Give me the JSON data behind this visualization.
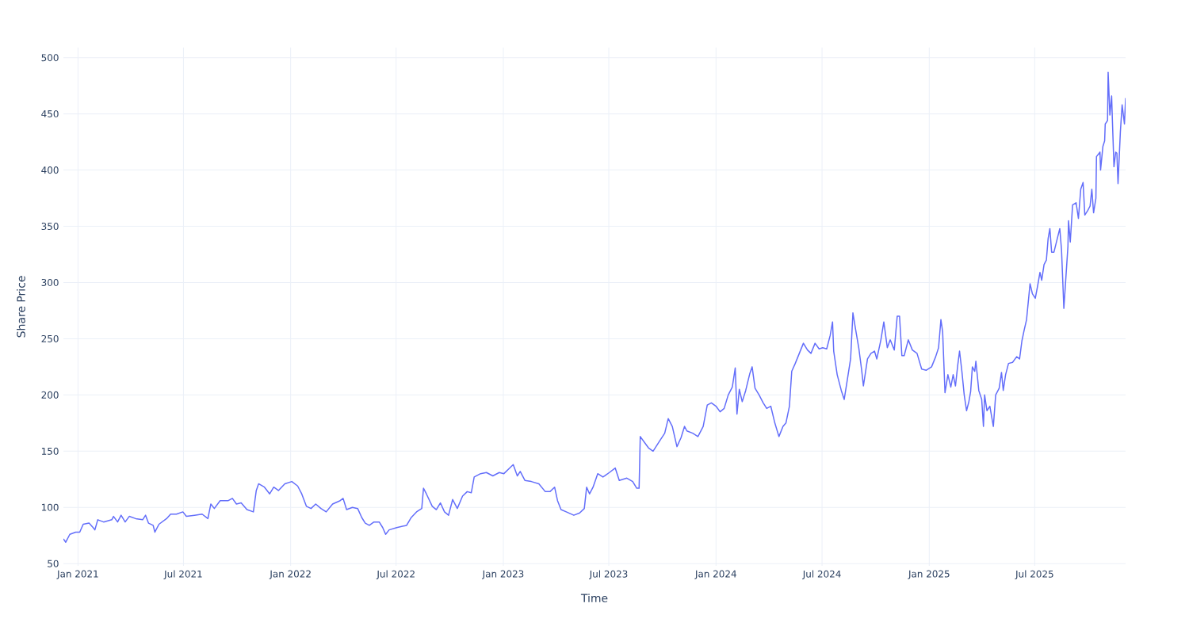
{
  "chart_data": {
    "type": "line",
    "xlabel": "Time",
    "ylabel": "Share Price",
    "x": [
      "2020-12-07",
      "2020-12-11",
      "2020-12-18",
      "2020-12-28",
      "2021-01-04",
      "2021-01-10",
      "2021-01-20",
      "2021-01-27",
      "2021-01-30",
      "2021-02-04",
      "2021-02-14",
      "2021-02-28",
      "2021-03-03",
      "2021-03-10",
      "2021-03-16",
      "2021-03-23",
      "2021-03-30",
      "2021-04-10",
      "2021-04-22",
      "2021-04-27",
      "2021-05-02",
      "2021-05-10",
      "2021-05-13",
      "2021-05-20",
      "2021-06-02",
      "2021-06-09",
      "2021-06-19",
      "2021-06-30",
      "2021-07-06",
      "2021-07-20",
      "2021-08-02",
      "2021-08-12",
      "2021-08-17",
      "2021-08-23",
      "2021-09-02",
      "2021-09-16",
      "2021-09-23",
      "2021-09-30",
      "2021-10-08",
      "2021-10-18",
      "2021-10-29",
      "2021-11-03",
      "2021-11-07",
      "2021-11-17",
      "2021-11-26",
      "2021-12-03",
      "2021-12-11",
      "2021-12-22",
      "2022-01-03",
      "2022-01-13",
      "2022-01-20",
      "2022-01-28",
      "2022-02-05",
      "2022-02-13",
      "2022-02-22",
      "2022-03-03",
      "2022-03-14",
      "2022-03-27",
      "2022-04-01",
      "2022-04-07",
      "2022-04-17",
      "2022-04-26",
      "2022-05-03",
      "2022-05-09",
      "2022-05-16",
      "2022-05-24",
      "2022-06-02",
      "2022-06-08",
      "2022-06-13",
      "2022-06-19",
      "2022-07-02",
      "2022-07-19",
      "2022-07-27",
      "2022-08-05",
      "2022-08-14",
      "2022-08-17",
      "2022-08-22",
      "2022-09-01",
      "2022-09-08",
      "2022-09-15",
      "2022-09-22",
      "2022-09-29",
      "2022-10-06",
      "2022-10-14",
      "2022-10-23",
      "2022-10-31",
      "2022-11-07",
      "2022-11-12",
      "2022-11-23",
      "2022-12-03",
      "2022-12-14",
      "2022-12-25",
      "2023-01-02",
      "2023-01-12",
      "2023-01-18",
      "2023-01-25",
      "2023-01-30",
      "2023-02-07",
      "2023-02-18",
      "2023-03-03",
      "2023-03-14",
      "2023-03-22",
      "2023-03-30",
      "2023-04-04",
      "2023-04-10",
      "2023-04-19",
      "2023-05-02",
      "2023-05-12",
      "2023-05-20",
      "2023-05-24",
      "2023-05-29",
      "2023-06-04",
      "2023-06-12",
      "2023-06-21",
      "2023-07-02",
      "2023-07-12",
      "2023-07-19",
      "2023-08-01",
      "2023-08-11",
      "2023-08-18",
      "2023-08-22",
      "2023-08-24",
      "2023-08-31",
      "2023-09-07",
      "2023-09-15",
      "2023-09-25",
      "2023-10-05",
      "2023-10-11",
      "2023-10-18",
      "2023-10-26",
      "2023-11-02",
      "2023-11-08",
      "2023-11-12",
      "2023-11-22",
      "2023-12-01",
      "2023-12-10",
      "2023-12-17",
      "2023-12-24",
      "2024-01-01",
      "2024-01-08",
      "2024-01-15",
      "2024-01-22",
      "2024-01-29",
      "2024-02-03",
      "2024-02-06",
      "2024-02-10",
      "2024-02-15",
      "2024-02-21",
      "2024-02-28",
      "2024-03-03",
      "2024-03-08",
      "2024-03-15",
      "2024-03-22",
      "2024-03-28",
      "2024-04-04",
      "2024-04-11",
      "2024-04-18",
      "2024-04-25",
      "2024-04-30",
      "2024-05-06",
      "2024-05-10",
      "2024-05-16",
      "2024-05-23",
      "2024-05-30",
      "2024-06-06",
      "2024-06-12",
      "2024-06-19",
      "2024-06-26",
      "2024-07-02",
      "2024-07-09",
      "2024-07-15",
      "2024-07-19",
      "2024-07-21",
      "2024-07-27",
      "2024-08-03",
      "2024-08-08",
      "2024-08-12",
      "2024-08-19",
      "2024-08-23",
      "2024-08-27",
      "2024-09-02",
      "2024-09-07",
      "2024-09-10",
      "2024-09-17",
      "2024-09-23",
      "2024-09-29",
      "2024-10-03",
      "2024-10-10",
      "2024-10-15",
      "2024-10-21",
      "2024-10-26",
      "2024-11-02",
      "2024-11-07",
      "2024-11-11",
      "2024-11-15",
      "2024-11-19",
      "2024-11-26",
      "2024-12-03",
      "2024-12-11",
      "2024-12-19",
      "2024-12-27",
      "2025-01-05",
      "2025-01-12",
      "2025-01-17",
      "2025-01-21",
      "2025-01-24",
      "2025-01-28",
      "2025-02-02",
      "2025-02-07",
      "2025-02-11",
      "2025-02-15",
      "2025-02-19",
      "2025-02-22",
      "2025-02-26",
      "2025-03-02",
      "2025-03-06",
      "2025-03-10",
      "2025-03-13",
      "2025-03-16",
      "2025-03-20",
      "2025-03-22",
      "2025-03-27",
      "2025-04-01",
      "2025-04-04",
      "2025-04-06",
      "2025-04-10",
      "2025-04-15",
      "2025-04-21",
      "2025-04-25",
      "2025-05-01",
      "2025-05-05",
      "2025-05-08",
      "2025-05-12",
      "2025-05-17",
      "2025-05-24",
      "2025-05-31",
      "2025-06-05",
      "2025-06-09",
      "2025-06-13",
      "2025-06-17",
      "2025-06-23",
      "2025-06-27",
      "2025-07-02",
      "2025-07-06",
      "2025-07-10",
      "2025-07-13",
      "2025-07-17",
      "2025-07-21",
      "2025-07-24",
      "2025-07-27",
      "2025-07-30",
      "2025-08-03",
      "2025-08-13",
      "2025-08-16",
      "2025-08-20",
      "2025-08-27",
      "2025-08-28",
      "2025-08-31",
      "2025-09-04",
      "2025-09-10",
      "2025-09-14",
      "2025-09-18",
      "2025-09-22",
      "2025-09-25",
      "2025-09-30",
      "2025-10-04",
      "2025-10-07",
      "2025-10-10",
      "2025-10-14",
      "2025-10-15",
      "2025-10-21",
      "2025-10-22",
      "2025-10-26",
      "2025-10-29",
      "2025-10-30",
      "2025-11-03",
      "2025-11-04",
      "2025-11-07",
      "2025-11-10",
      "2025-11-11",
      "2025-11-14",
      "2025-11-17",
      "2025-11-19",
      "2025-11-21",
      "2025-11-25",
      "2025-11-28",
      "2025-12-02",
      "2025-12-04"
    ],
    "values": [
      72,
      69,
      76,
      78,
      78,
      85,
      86,
      82,
      80,
      89,
      87,
      89,
      92,
      87,
      93,
      87,
      92,
      90,
      89,
      93,
      86,
      84,
      78,
      85,
      90,
      94,
      94,
      96,
      92,
      93,
      94,
      90,
      103,
      99,
      106,
      106,
      108,
      103,
      104,
      98,
      96,
      115,
      121,
      118,
      112,
      118,
      115,
      121,
      123,
      119,
      112,
      101,
      99,
      103,
      99,
      96,
      103,
      106,
      108,
      98,
      100,
      99,
      91,
      86,
      84,
      87,
      87,
      82,
      76,
      80,
      82,
      84,
      91,
      96,
      99,
      117,
      112,
      101,
      98,
      104,
      96,
      93,
      107,
      99,
      110,
      114,
      113,
      127,
      130,
      131,
      128,
      131,
      130,
      135,
      138,
      128,
      132,
      124,
      123,
      121,
      114,
      114,
      118,
      106,
      98,
      96,
      93,
      95,
      99,
      118,
      112,
      118,
      130,
      127,
      131,
      135,
      124,
      126,
      123,
      117,
      117,
      163,
      158,
      153,
      150,
      158,
      166,
      179,
      172,
      154,
      162,
      172,
      168,
      166,
      163,
      172,
      191,
      193,
      190,
      185,
      188,
      200,
      207,
      224,
      183,
      205,
      194,
      204,
      219,
      225,
      206,
      200,
      193,
      188,
      190,
      175,
      163,
      172,
      175,
      190,
      221,
      228,
      237,
      246,
      240,
      237,
      246,
      241,
      242,
      241,
      253,
      265,
      239,
      218,
      204,
      196,
      209,
      232,
      273,
      260,
      242,
      222,
      208,
      232,
      237,
      239,
      232,
      249,
      265,
      242,
      249,
      240,
      270,
      270,
      235,
      235,
      249,
      240,
      237,
      223,
      222,
      225,
      234,
      242,
      267,
      256,
      202,
      218,
      207,
      218,
      208,
      227,
      239,
      221,
      200,
      186,
      194,
      203,
      225,
      221,
      230,
      204,
      196,
      172,
      200,
      186,
      190,
      172,
      200,
      206,
      220,
      204,
      218,
      228,
      229,
      234,
      232,
      248,
      258,
      267,
      299,
      290,
      286,
      297,
      309,
      302,
      316,
      320,
      339,
      348,
      327,
      327,
      348,
      329,
      277,
      332,
      355,
      336,
      369,
      371,
      357,
      383,
      389,
      360,
      364,
      368,
      383,
      362,
      375,
      412,
      416,
      400,
      421,
      426,
      441,
      444,
      487,
      449,
      466,
      449,
      403,
      416,
      415,
      388,
      434,
      458,
      441,
      464
    ],
    "color": "#636efa",
    "line_style": "solid",
    "marker": "none",
    "xlim": [
      "2020-12-07",
      "2025-12-04"
    ],
    "ylim": [
      48,
      509
    ],
    "xticks": [
      {
        "value": "2021-01-01",
        "label": "Jan 2021"
      },
      {
        "value": "2021-07-01",
        "label": "Jul 2021"
      },
      {
        "value": "2022-01-01",
        "label": "Jan 2022"
      },
      {
        "value": "2022-07-01",
        "label": "Jul 2022"
      },
      {
        "value": "2023-01-01",
        "label": "Jan 2023"
      },
      {
        "value": "2023-07-01",
        "label": "Jul 2023"
      },
      {
        "value": "2024-01-01",
        "label": "Jan 2024"
      },
      {
        "value": "2024-07-01",
        "label": "Jul 2024"
      },
      {
        "value": "2025-01-01",
        "label": "Jan 2025"
      },
      {
        "value": "2025-07-01",
        "label": "Jul 2025"
      }
    ],
    "yticks": [
      50,
      100,
      150,
      200,
      250,
      300,
      350,
      400,
      450,
      500
    ],
    "grid": true
  }
}
